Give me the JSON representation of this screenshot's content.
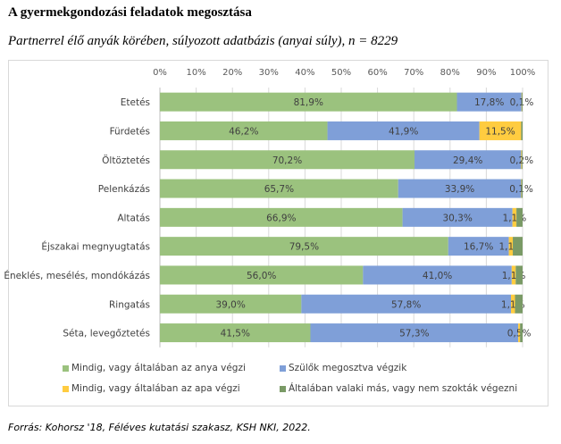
{
  "title": "A gyermekgondozási feladatok megosztása",
  "subtitle": "Partnerrel élő anyák körében, súlyozott adatbázis (anyai súly), n = 8229",
  "source": "Forrás: Kohorsz '18, Féléves kutatási szakasz, KSH NKI, 2022.",
  "chart_data": {
    "type": "bar",
    "orientation": "horizontal",
    "stacked": "percent",
    "title": "A gyermekgondozási feladatok megosztása",
    "subtitle": "Partnerrel élő anyák körében, súlyozott adatbázis (anyai súly), n = 8229",
    "xlabel": "",
    "ylabel": "",
    "xlim": [
      0,
      100
    ],
    "x_ticks": [
      "0%",
      "10%",
      "20%",
      "30%",
      "40%",
      "50%",
      "60%",
      "70%",
      "80%",
      "90%",
      "100%"
    ],
    "grid": true,
    "legend_position": "bottom",
    "categories": [
      "Etetés",
      "Fürdetés",
      "Öltöztetés",
      "Pelenkázás",
      "Altatás",
      "Éjszakai megnyugtatás",
      "Éneklés, mesélés, mondókázás",
      "Ringatás",
      "Séta, levegőztetés"
    ],
    "series": [
      {
        "name": "Mindig, vagy általában az anya végzi",
        "color": "#9bc27e",
        "values": [
          81.9,
          46.2,
          70.2,
          65.7,
          66.9,
          79.5,
          56.0,
          39.0,
          41.5
        ],
        "labels": [
          "81,9%",
          "46,2%",
          "70,2%",
          "65,7%",
          "66,9%",
          "79,5%",
          "56,0%",
          "39,0%",
          "41,5%"
        ]
      },
      {
        "name": "Szülők megosztva végzik",
        "color": "#7f9fd8",
        "values": [
          17.8,
          41.9,
          29.4,
          33.9,
          30.3,
          16.7,
          41.0,
          57.8,
          57.3
        ],
        "labels": [
          "17,8%",
          "41,9%",
          "29,4%",
          "33,9%",
          "30,3%",
          "16,7%",
          "41,0%",
          "57,8%",
          "57,3%"
        ]
      },
      {
        "name": "Mindig, vagy általában az apa végzi",
        "color": "#ffcc40",
        "values": [
          0.1,
          11.5,
          0.2,
          0.1,
          1.1,
          1.1,
          1.1,
          1.1,
          0.5
        ],
        "labels": [
          "0,1%",
          "11,5%",
          "0,2%",
          "0,1%",
          "1,1%",
          "1,1%",
          "1,1%",
          "1,1%",
          "0,5%"
        ]
      },
      {
        "name": "Általában valaki más, vagy nem szokták végezni",
        "color": "#7a9a66",
        "values": [
          0.2,
          0.4,
          0.2,
          0.3,
          1.7,
          2.7,
          1.9,
          2.1,
          0.7
        ],
        "labels": [
          "",
          "",
          "",
          "",
          "",
          "",
          "",
          "",
          ""
        ]
      }
    ]
  }
}
